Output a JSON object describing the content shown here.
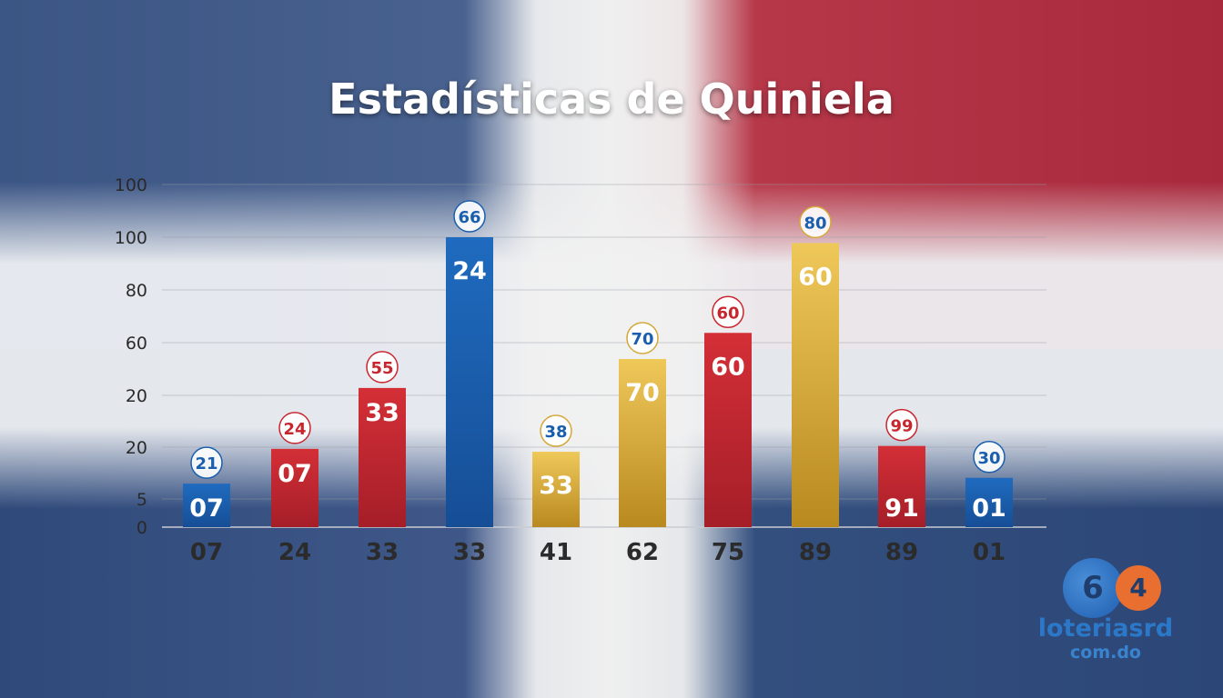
{
  "chart_data": {
    "type": "bar",
    "title": "Estadísticas de Quiniela",
    "categories": [
      "07",
      "24",
      "33",
      "33",
      "41",
      "62",
      "75",
      "89",
      "89",
      "01"
    ],
    "values": [
      15,
      27,
      48,
      100,
      26,
      58,
      67,
      98,
      28,
      17
    ],
    "bar_labels": [
      "07",
      "07",
      "33",
      "24",
      "33",
      "70",
      "60",
      "60",
      "91",
      "01"
    ],
    "badge_labels": [
      "21",
      "24",
      "55",
      "66",
      "38",
      "70",
      "60",
      "80",
      "99",
      "30"
    ],
    "bar_colors": [
      "blue",
      "red",
      "red",
      "blue",
      "gold",
      "gold",
      "red",
      "gold",
      "red",
      "blue"
    ],
    "y_tick_labels": [
      "100",
      "100",
      "80",
      "60",
      "20",
      "20",
      "5",
      "0"
    ],
    "ylim": [
      0,
      100
    ],
    "grid": true,
    "legend": "none",
    "xlabel": "",
    "ylabel": ""
  },
  "colors": {
    "blue": "#1a5fae",
    "red": "#c8262f",
    "gold": "#d4a83a",
    "axis_text": "#2a2a2a"
  },
  "logo": {
    "digit1": "6",
    "digit2": "4",
    "name": "loteriasrd",
    "domain": "com.do"
  }
}
